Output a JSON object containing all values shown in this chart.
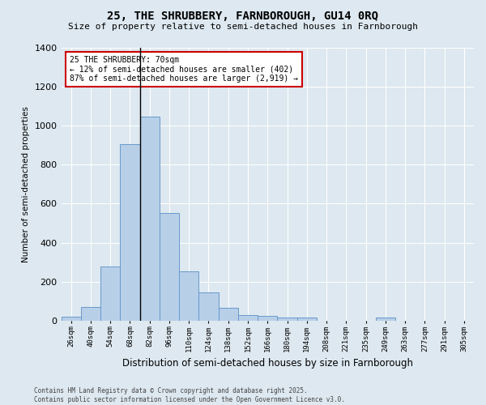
{
  "title": "25, THE SHRUBBERY, FARNBOROUGH, GU14 0RQ",
  "subtitle": "Size of property relative to semi-detached houses in Farnborough",
  "xlabel": "Distribution of semi-detached houses by size in Farnborough",
  "ylabel": "Number of semi-detached properties",
  "categories": [
    "26sqm",
    "40sqm",
    "54sqm",
    "68sqm",
    "82sqm",
    "96sqm",
    "110sqm",
    "124sqm",
    "138sqm",
    "152sqm",
    "166sqm",
    "180sqm",
    "194sqm",
    "208sqm",
    "221sqm",
    "235sqm",
    "249sqm",
    "263sqm",
    "277sqm",
    "291sqm",
    "305sqm"
  ],
  "values": [
    20,
    68,
    278,
    905,
    1047,
    552,
    252,
    143,
    67,
    28,
    25,
    18,
    14,
    0,
    0,
    0,
    14,
    0,
    0,
    0,
    0
  ],
  "bar_color": "#b8cfe8",
  "bar_edge_color": "#6699cc",
  "vline_x_index": 3,
  "marker_label_line1": "25 THE SHRUBBERY: 70sqm",
  "marker_label_line2": "← 12% of semi-detached houses are smaller (402)",
  "marker_label_line3": "87% of semi-detached houses are larger (2,919) →",
  "annotation_box_facecolor": "#ffffff",
  "annotation_box_edgecolor": "#cc0000",
  "ylim": [
    0,
    1400
  ],
  "yticks": [
    0,
    200,
    400,
    600,
    800,
    1000,
    1200,
    1400
  ],
  "background_color": "#dde8f0",
  "grid_color": "#ffffff",
  "footer": "Contains HM Land Registry data © Crown copyright and database right 2025.\nContains public sector information licensed under the Open Government Licence v3.0."
}
